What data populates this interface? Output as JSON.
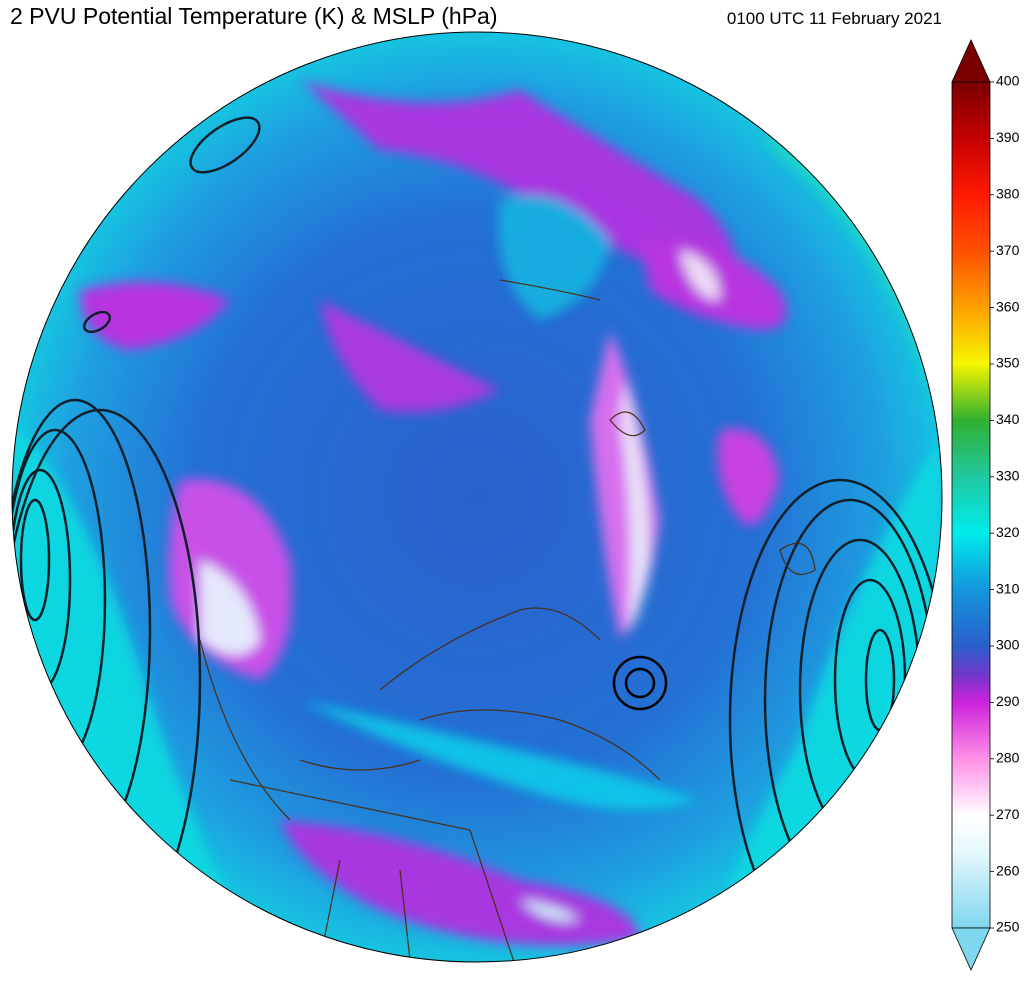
{
  "header": {
    "title": "2 PVU Potential Temperature (K) & MSLP (hPa)",
    "timestamp": "0100 UTC 11 February 2021"
  },
  "colorbar": {
    "lim": [
      250,
      400
    ],
    "ticks": [
      250,
      260,
      270,
      280,
      290,
      300,
      310,
      320,
      330,
      340,
      350,
      360,
      370,
      380,
      390,
      400
    ]
  }
}
